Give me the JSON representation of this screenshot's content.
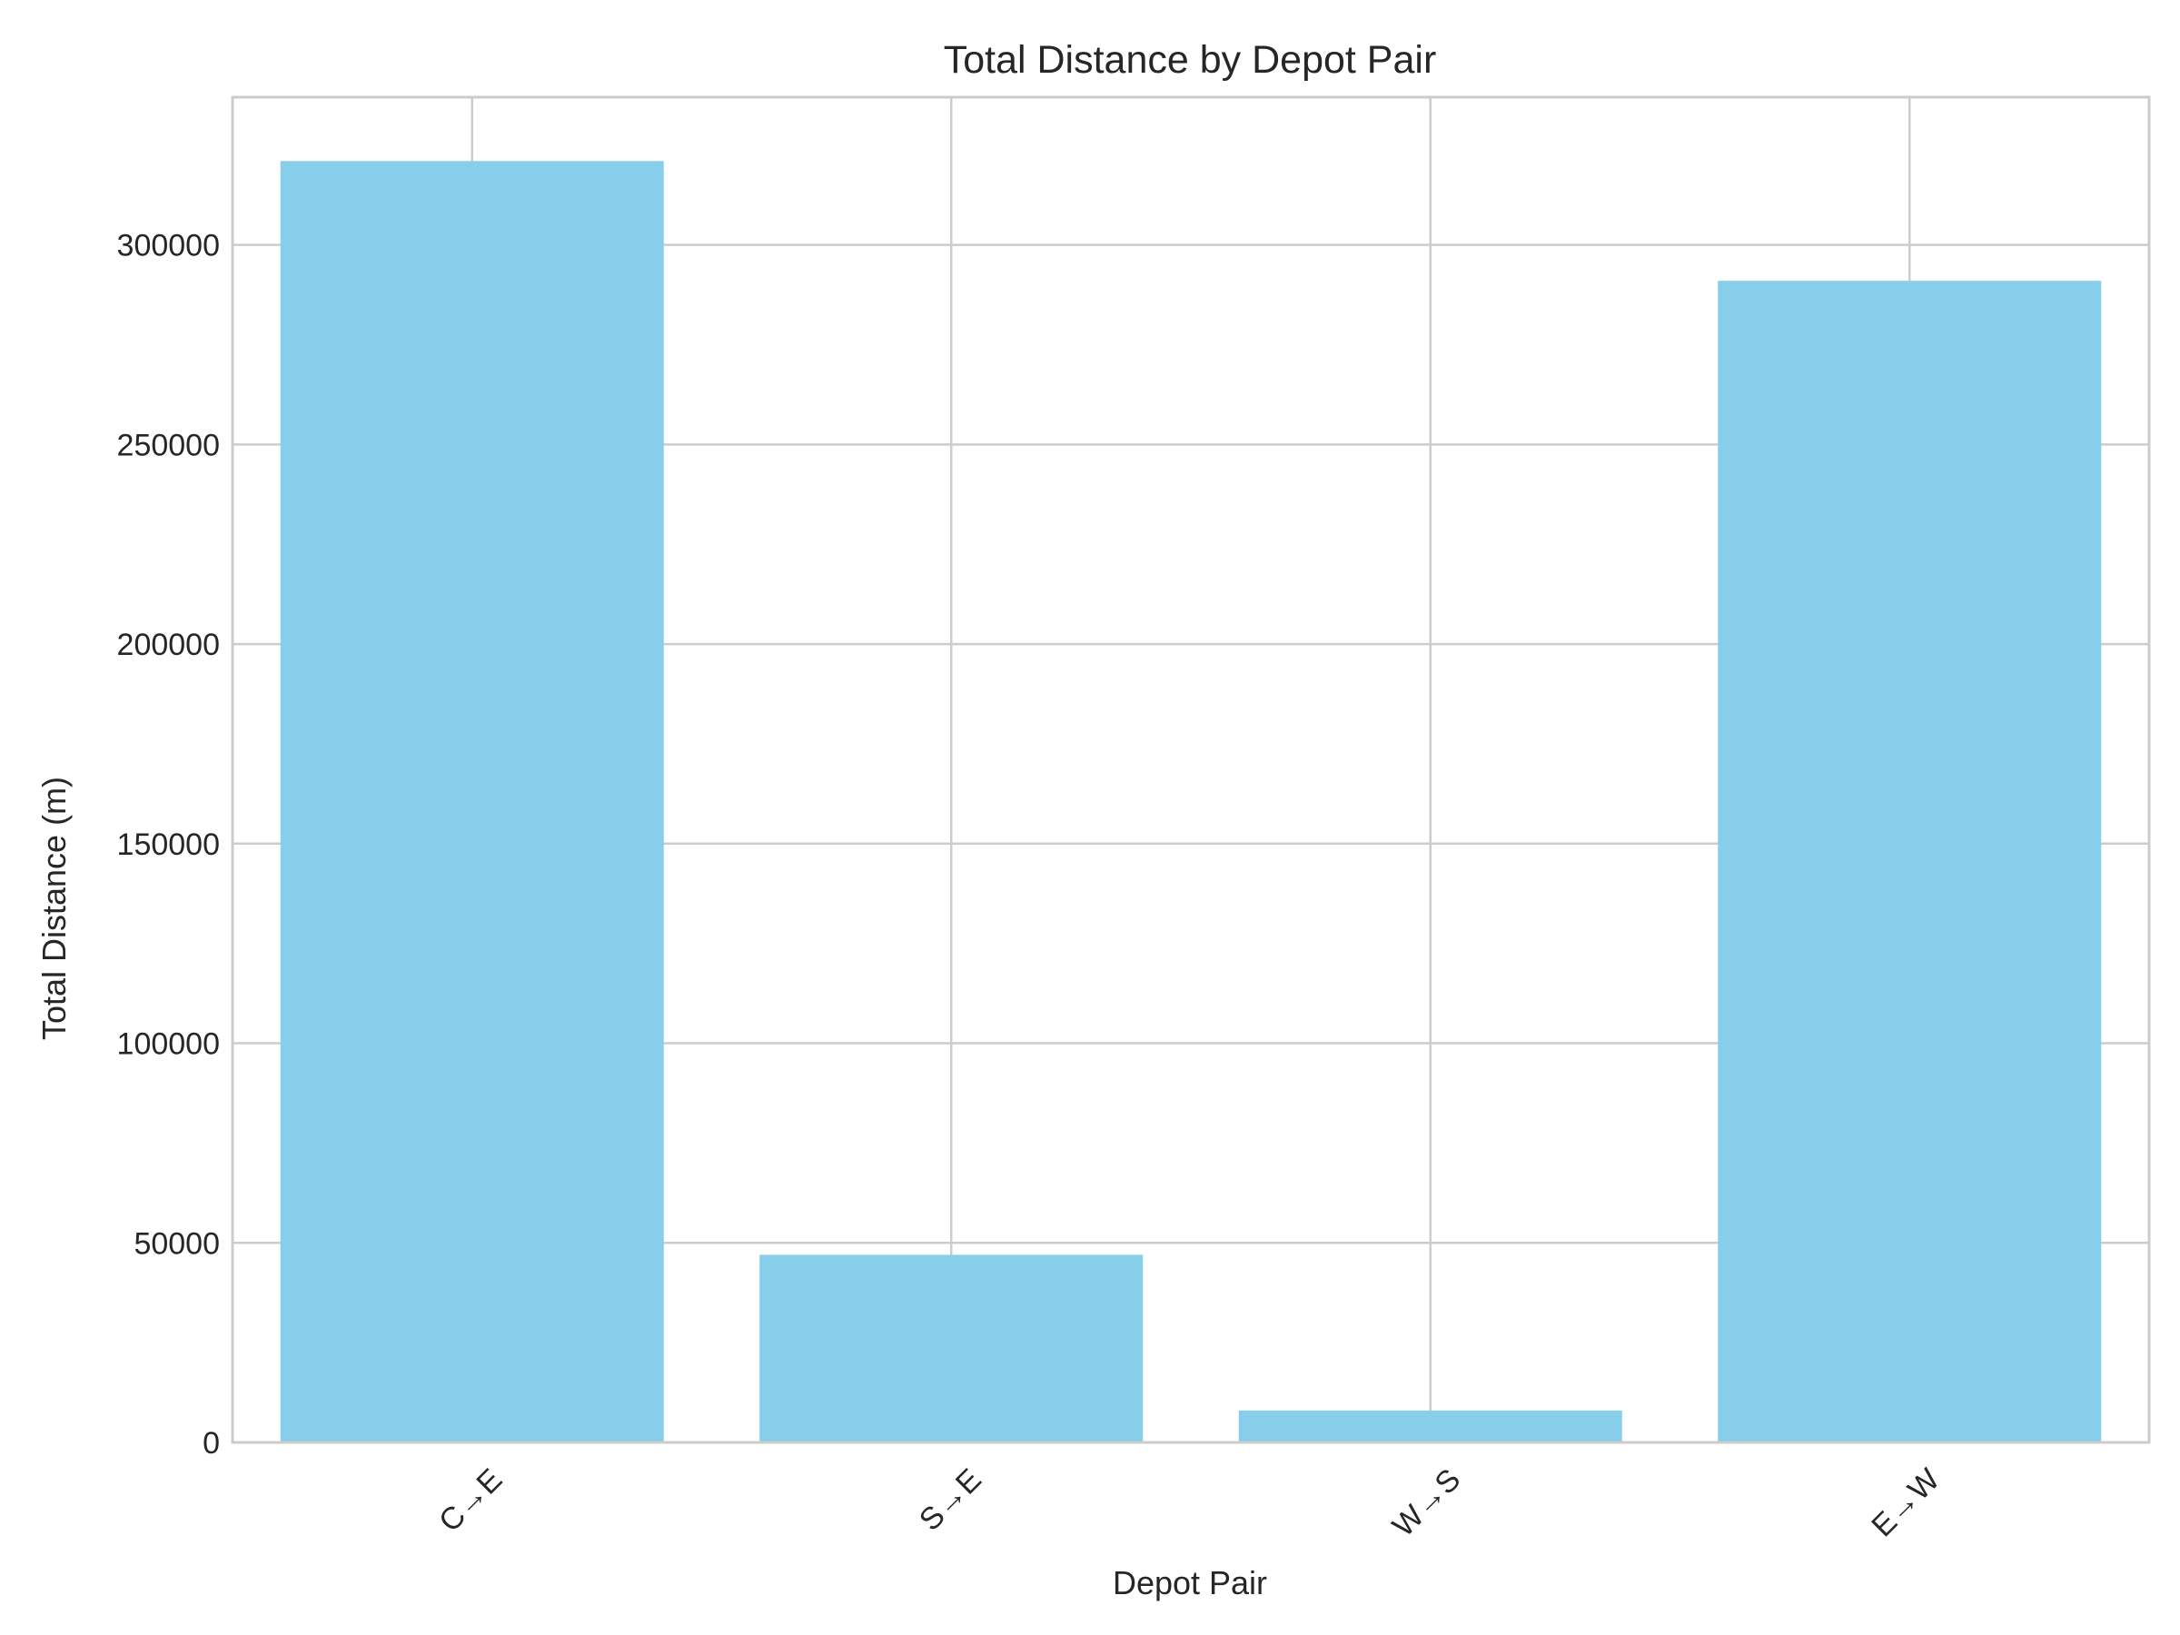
{
  "chart_data": {
    "type": "bar",
    "title": "Total Distance by Depot Pair",
    "xlabel": "Depot Pair",
    "ylabel": "Total Distance (m)",
    "categories": [
      "C→E",
      "S→E",
      "W→S",
      "E→W"
    ],
    "values": [
      321000,
      47000,
      8000,
      291000
    ],
    "ylim": [
      0,
      337000
    ],
    "yticks": [
      0,
      50000,
      100000,
      150000,
      200000,
      250000,
      300000
    ],
    "ytick_labels": [
      "0",
      "50000",
      "100000",
      "150000",
      "200000",
      "250000",
      "300000"
    ],
    "grid": true,
    "legend": "none",
    "bar_color": "#87CEEB",
    "grid_color": "#cccccc",
    "spine_color": "#cccccc",
    "text_color": "#262626"
  }
}
